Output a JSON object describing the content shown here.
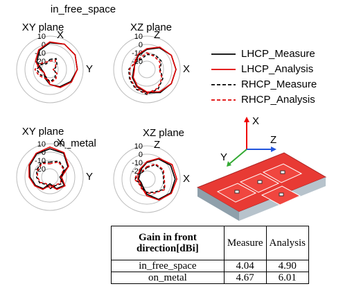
{
  "labels": {
    "free": "in_free_space",
    "metal": "on_metal"
  },
  "chart_data": [
    {
      "type": "polar",
      "title": "XY plane",
      "top_label": "X",
      "right_label": "Y",
      "rlim": [
        -30,
        10
      ],
      "rticks": [
        10,
        0,
        -10,
        -20
      ],
      "theta": [
        0,
        30,
        60,
        90,
        120,
        150,
        180,
        210,
        240,
        270,
        300,
        330
      ],
      "series": [
        {
          "name": "LHCP_Measure",
          "color": "#000000",
          "dash": false,
          "values": [
            2,
            5,
            5,
            3,
            -1,
            -6,
            -12,
            -18,
            -22,
            -20,
            -12,
            -4
          ]
        },
        {
          "name": "LHCP_Analysis",
          "color": "#e00000",
          "dash": false,
          "values": [
            3,
            5,
            5,
            3,
            0,
            -5,
            -12,
            -20,
            -22,
            -18,
            -10,
            -3
          ]
        },
        {
          "name": "RHCP_Measure",
          "color": "#000000",
          "dash": true,
          "values": [
            -18,
            -15,
            -20,
            -25,
            -22,
            -18,
            -15,
            -20,
            -17,
            -14,
            -18,
            -22
          ]
        },
        {
          "name": "RHCP_Analysis",
          "color": "#e00000",
          "dash": true,
          "values": [
            -20,
            -17,
            -22,
            -26,
            -20,
            -16,
            -14,
            -18,
            -15,
            -12,
            -16,
            -20
          ]
        }
      ]
    },
    {
      "type": "polar",
      "title": "XZ plane",
      "top_label": "Z",
      "right_label": "X",
      "rlim": [
        -30,
        10
      ],
      "rticks": [
        10,
        0,
        -10,
        -20
      ],
      "theta": [
        0,
        30,
        60,
        90,
        120,
        150,
        180,
        210,
        240,
        270,
        300,
        330
      ],
      "series": [
        {
          "name": "LHCP_Measure",
          "color": "#000000",
          "dash": false,
          "values": [
            -6,
            0,
            4,
            5,
            4,
            2,
            -2,
            -6,
            -10,
            -14,
            -14,
            -10
          ]
        },
        {
          "name": "LHCP_Analysis",
          "color": "#e00000",
          "dash": false,
          "values": [
            -5,
            1,
            4,
            5,
            4,
            1,
            -3,
            -7,
            -11,
            -15,
            -13,
            -9
          ]
        },
        {
          "name": "RHCP_Measure",
          "color": "#000000",
          "dash": true,
          "values": [
            -12,
            -10,
            -10,
            -14,
            -8,
            -3,
            0,
            -3,
            -6,
            -8,
            -14,
            -16
          ]
        },
        {
          "name": "RHCP_Analysis",
          "color": "#e00000",
          "dash": true,
          "values": [
            -10,
            -12,
            -12,
            -15,
            -9,
            -4,
            -1,
            -4,
            -7,
            -9,
            -13,
            -14
          ]
        }
      ]
    },
    {
      "type": "polar",
      "title": "XY plane",
      "top_label": "X",
      "right_label": "Y",
      "rlim": [
        -30,
        10
      ],
      "rticks": [
        10,
        0,
        -10,
        -20
      ],
      "theta": [
        0,
        30,
        60,
        90,
        120,
        150,
        180,
        210,
        240,
        270,
        300,
        330
      ],
      "series": [
        {
          "name": "LHCP_Measure",
          "color": "#000000",
          "dash": false,
          "values": [
            4,
            3,
            -5,
            -18,
            -10,
            -14,
            -22,
            -14,
            -10,
            -6,
            -2,
            2
          ]
        },
        {
          "name": "LHCP_Analysis",
          "color": "#e00000",
          "dash": false,
          "values": [
            6,
            4,
            -4,
            -16,
            -9,
            -13,
            -20,
            -13,
            -9,
            -5,
            -1,
            3
          ]
        },
        {
          "name": "RHCP_Measure",
          "color": "#000000",
          "dash": true,
          "values": [
            -12,
            -8,
            -10,
            -16,
            -14,
            -18,
            -16,
            -20,
            -16,
            -14,
            -12,
            -10
          ]
        },
        {
          "name": "RHCP_Analysis",
          "color": "#e00000",
          "dash": true,
          "values": [
            -14,
            -9,
            -11,
            -17,
            -15,
            -19,
            -17,
            -21,
            -17,
            -15,
            -13,
            -11
          ]
        }
      ]
    },
    {
      "type": "polar",
      "title": "XZ plane",
      "top_label": "Z",
      "right_label": "X",
      "rlim": [
        -30,
        10
      ],
      "rticks": [
        10,
        0,
        -10,
        -20
      ],
      "theta": [
        0,
        30,
        60,
        90,
        120,
        150,
        180,
        210,
        240,
        270,
        300,
        330
      ],
      "series": [
        {
          "name": "LHCP_Measure",
          "color": "#000000",
          "dash": false,
          "values": [
            -10,
            -2,
            3,
            4,
            3,
            -2,
            -12,
            -20,
            -22,
            -20,
            -20,
            -16
          ]
        },
        {
          "name": "LHCP_Analysis",
          "color": "#e00000",
          "dash": false,
          "values": [
            -9,
            -1,
            5,
            6,
            4,
            -1,
            -10,
            -18,
            -21,
            -19,
            -18,
            -15
          ]
        },
        {
          "name": "RHCP_Measure",
          "color": "#000000",
          "dash": true,
          "values": [
            -16,
            -10,
            -8,
            -10,
            -6,
            -12,
            -14,
            -18,
            -20,
            -16,
            -18,
            -20
          ]
        },
        {
          "name": "RHCP_Analysis",
          "color": "#e00000",
          "dash": true,
          "values": [
            -15,
            -9,
            -7,
            -9,
            -5,
            -11,
            -13,
            -17,
            -19,
            -15,
            -17,
            -19
          ]
        }
      ]
    }
  ],
  "diagram": {
    "axes": [
      "X",
      "Z",
      "Y"
    ]
  },
  "table": {
    "header": [
      "Gain in front direction[dBi]",
      "Measure",
      "Analysis"
    ],
    "rows": [
      [
        "in_free_space",
        "4.04",
        "4.90"
      ],
      [
        "on_metal",
        "4.67",
        "6.01"
      ]
    ]
  }
}
